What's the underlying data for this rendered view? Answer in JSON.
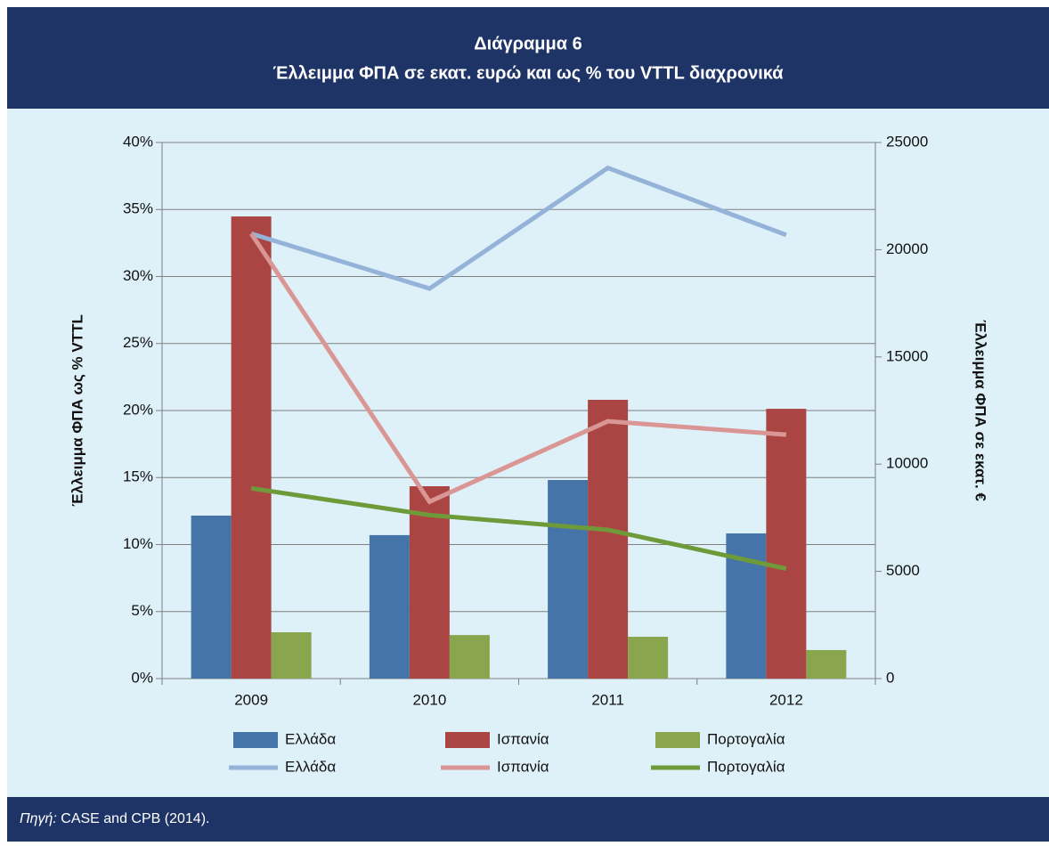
{
  "chart_data": {
    "type": "combo",
    "title": "Διάγραμμα 6",
    "subtitle": "Έλλειμμα ΦΠΑ σε εκατ. ευρώ και ως % του VTTL διαχρονικά",
    "y_label": "Έλλειμμα ΦΠΑ ως % VTTL",
    "y2_label": "Έλλειμμα ΦΠΑ σε εκατ. €",
    "categories": [
      "2009",
      "2010",
      "2011",
      "2012"
    ],
    "ylim": [
      0,
      40
    ],
    "yticks": [
      {
        "value": 0,
        "label": "0%"
      },
      {
        "value": 5,
        "label": "5%"
      },
      {
        "value": 10,
        "label": "10%"
      },
      {
        "value": 15,
        "label": "15%"
      },
      {
        "value": 20,
        "label": "20%"
      },
      {
        "value": 25,
        "label": "25%"
      },
      {
        "value": 30,
        "label": "30%"
      },
      {
        "value": 35,
        "label": "35%"
      },
      {
        "value": 40,
        "label": "40%"
      }
    ],
    "y2lim": [
      0,
      25000
    ],
    "y2ticks": [
      0,
      5000,
      10000,
      15000,
      20000,
      25000
    ],
    "grid": true,
    "series": [
      {
        "name": "Ελλάδα",
        "type": "bar",
        "axis": "y2",
        "color": "#4574a9",
        "values": [
          7600,
          6690,
          9260,
          6770
        ]
      },
      {
        "name": "Ισπανία",
        "type": "bar",
        "axis": "y2",
        "color": "#aa4543",
        "values": [
          21550,
          8970,
          13000,
          12580
        ]
      },
      {
        "name": "Πορτογαλία",
        "type": "bar",
        "axis": "y2",
        "color": "#89a54e",
        "values": [
          2160,
          2030,
          1950,
          1330
        ]
      },
      {
        "name": "Ελλάδα",
        "type": "line",
        "color": "#95b3d9",
        "values": [
          33.2,
          29.1,
          38.1,
          33.1
        ]
      },
      {
        "name": "Ισπανία",
        "type": "line",
        "color": "#d99694",
        "values": [
          33.2,
          13.2,
          19.2,
          18.2
        ]
      },
      {
        "name": "Πορτογαλία",
        "type": "line",
        "color": "#6f9a3a",
        "values": [
          14.2,
          12.2,
          11.1,
          8.2
        ]
      }
    ],
    "source_label": "Πηγή:",
    "source_text": "CASE and CPB (2014)."
  }
}
